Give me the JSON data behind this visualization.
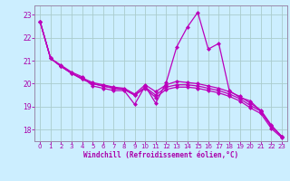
{
  "xlabel": "Windchill (Refroidissement éolien,°C)",
  "bg_color": "#cceeff",
  "line_color": "#bb00bb",
  "grid_color": "#aacccc",
  "axis_color": "#9988aa",
  "text_color": "#aa00aa",
  "xlim": [
    -0.5,
    23.5
  ],
  "ylim": [
    17.5,
    23.4
  ],
  "yticks": [
    18,
    19,
    20,
    21,
    22,
    23
  ],
  "xticks": [
    0,
    1,
    2,
    3,
    4,
    5,
    6,
    7,
    8,
    9,
    10,
    11,
    12,
    13,
    14,
    15,
    16,
    17,
    18,
    19,
    20,
    21,
    22,
    23
  ],
  "s1": [
    22.7,
    21.1,
    20.8,
    20.5,
    20.3,
    19.9,
    19.8,
    19.7,
    19.7,
    19.1,
    19.9,
    19.15,
    20.05,
    21.6,
    22.45,
    23.1,
    21.5,
    21.75,
    19.7,
    19.4,
    19.25,
    18.8,
    18.15,
    17.7
  ],
  "s2": [
    22.7,
    21.1,
    20.75,
    20.45,
    20.25,
    20.05,
    19.95,
    19.85,
    19.8,
    19.55,
    19.95,
    19.65,
    19.95,
    20.1,
    20.05,
    20.0,
    19.9,
    19.8,
    19.65,
    19.45,
    19.15,
    18.85,
    18.2,
    17.7
  ],
  "s3": [
    22.7,
    21.1,
    20.75,
    20.45,
    20.2,
    20.0,
    19.9,
    19.8,
    19.75,
    19.5,
    19.85,
    19.5,
    19.85,
    19.95,
    19.95,
    19.9,
    19.8,
    19.7,
    19.55,
    19.35,
    19.05,
    18.8,
    18.15,
    17.7
  ],
  "s4": [
    22.7,
    21.1,
    20.75,
    20.45,
    20.2,
    20.0,
    19.9,
    19.8,
    19.75,
    19.5,
    19.8,
    19.4,
    19.75,
    19.85,
    19.85,
    19.8,
    19.7,
    19.6,
    19.45,
    19.25,
    18.95,
    18.7,
    18.05,
    17.65
  ]
}
